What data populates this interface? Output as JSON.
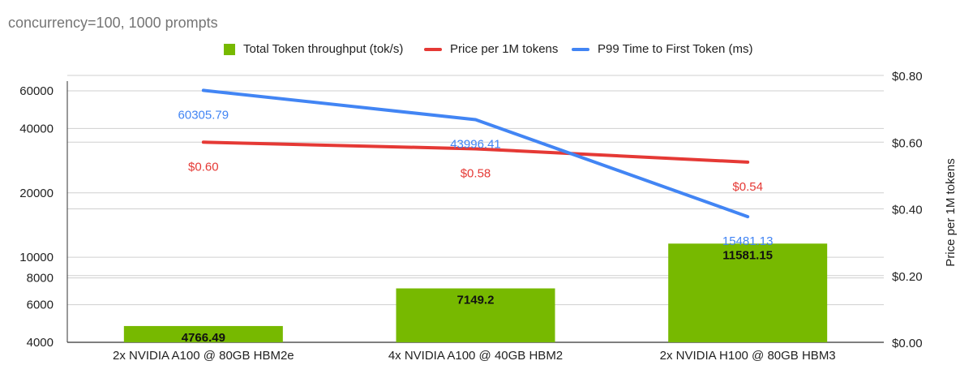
{
  "subtitle": "concurrency=100, 1000 prompts",
  "colors": {
    "throughput": "#77b900",
    "price": "#e53935",
    "ttft": "#4285f4",
    "grid": "#cfcfcf",
    "axis_text": "#222222"
  },
  "legend": [
    {
      "label": "Total Token throughput (tok/s)",
      "kind": "box",
      "color": "#77b900"
    },
    {
      "label": "Price per 1M tokens",
      "kind": "line",
      "color": "#e53935"
    },
    {
      "label": "P99 Time to First Token (ms)",
      "kind": "line",
      "color": "#4285f4"
    }
  ],
  "chart_data": {
    "type": "bar",
    "title": "",
    "subtitle": "concurrency=100, 1000 prompts",
    "categories": [
      "2x NVIDIA A100 @ 80GB HBM2e",
      "4x NVIDIA A100 @ 40GB HBM2",
      "2x NVIDIA H100 @ 80GB HBM3"
    ],
    "series": [
      {
        "name": "Total Token throughput (tok/s)",
        "type": "bar",
        "axis": "left",
        "values": [
          4766.49,
          7149.2,
          11581.15
        ],
        "labels": [
          "4766.49",
          "7149.2",
          "11581.15"
        ],
        "color": "#77b900"
      },
      {
        "name": "Price per 1M tokens",
        "type": "line",
        "axis": "right",
        "values": [
          0.6,
          0.58,
          0.54
        ],
        "labels": [
          "$0.60",
          "$0.58",
          "$0.54"
        ],
        "color": "#e53935"
      },
      {
        "name": "P99 Time to First Token (ms)",
        "type": "line",
        "axis": "left",
        "values": [
          60305.79,
          43996.41,
          15481.13
        ],
        "labels": [
          "60305.79",
          "43996.41",
          "15481.13"
        ],
        "color": "#4285f4"
      }
    ],
    "y_left": {
      "scale": "log",
      "ylim": [
        4000,
        70000
      ],
      "ticks": [
        4000,
        6000,
        8000,
        10000,
        20000,
        40000,
        60000
      ],
      "tick_labels": [
        "4000",
        "6000",
        "8000",
        "10000",
        "20000",
        "40000",
        "60000"
      ],
      "label": ""
    },
    "y_right": {
      "scale": "linear",
      "ylim": [
        0,
        0.8
      ],
      "ticks": [
        0,
        0.2,
        0.4,
        0.6,
        0.8
      ],
      "tick_labels": [
        "$0.00",
        "$0.20",
        "$0.40",
        "$0.60",
        "$0.80"
      ],
      "label": "Price per 1M tokens"
    },
    "xlabel": "",
    "grid": true,
    "legend_position": "top"
  }
}
